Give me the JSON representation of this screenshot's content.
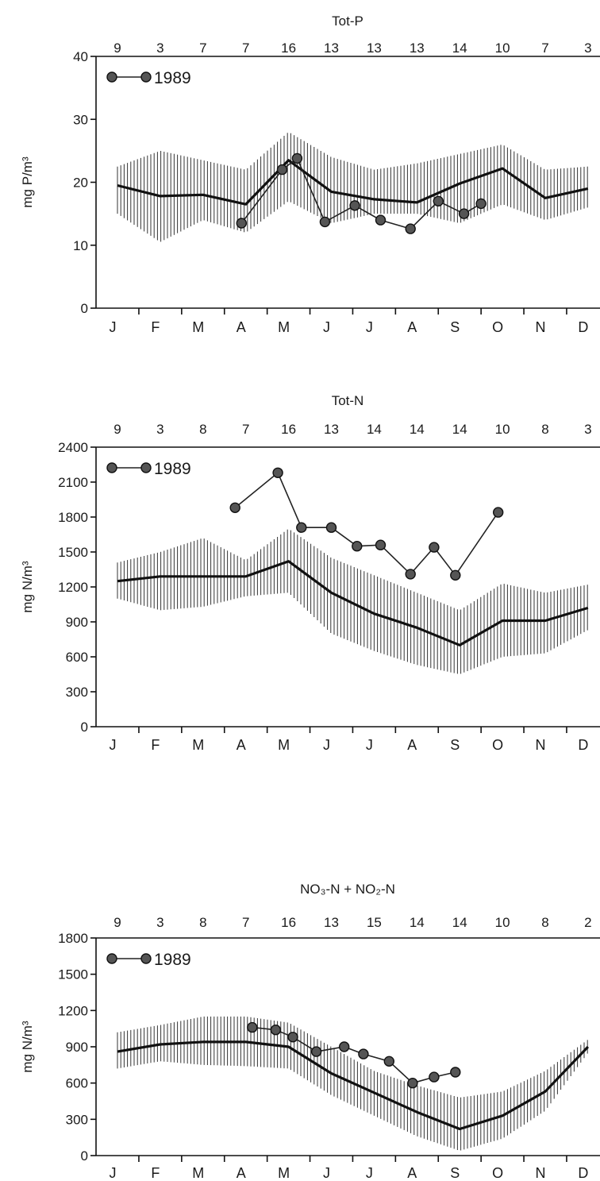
{
  "chart_data": [
    {
      "type": "line",
      "title": "Tot-P",
      "ylabel": "mg P/m³",
      "ylim": [
        0,
        40
      ],
      "yticks": [
        "0",
        "10",
        "20",
        "30",
        "40"
      ],
      "months": [
        "J",
        "F",
        "M",
        "A",
        "M",
        "J",
        "J",
        "A",
        "S",
        "O",
        "N",
        "D"
      ],
      "counts": [
        "9",
        "3",
        "7",
        "7",
        "16",
        "13",
        "13",
        "13",
        "14",
        "10",
        "7",
        "3"
      ],
      "legend": "1989",
      "mean": {
        "x": [
          0,
          1,
          2,
          3,
          4,
          5,
          6,
          7,
          8,
          9,
          10,
          11
        ],
        "y": [
          19.5,
          17.8,
          18,
          16.5,
          23.5,
          18.5,
          17.3,
          16.8,
          19.8,
          22.2,
          17.5,
          19
        ]
      },
      "band": {
        "x": [
          0,
          1,
          2,
          3,
          4,
          5,
          6,
          7,
          8,
          9,
          10,
          11
        ],
        "low": [
          15,
          10.5,
          14,
          12,
          17,
          13.5,
          15,
          15,
          13.5,
          16.5,
          14,
          16
        ],
        "high": [
          22.5,
          25,
          23.5,
          22,
          28,
          24,
          22,
          23,
          24.5,
          26,
          22,
          22.5
        ]
      },
      "series_1989": {
        "x": [
          2.9,
          3.85,
          4.2,
          4.85,
          5.55,
          6.15,
          6.85,
          7.5,
          8.1,
          8.5
        ],
        "y": [
          13.5,
          22,
          23.8,
          13.7,
          16.3,
          14,
          12.6,
          17,
          15,
          16.6
        ]
      }
    },
    {
      "type": "line",
      "title": "Tot-N",
      "ylabel": "mg N/m³",
      "ylim": [
        0,
        2400
      ],
      "yticks": [
        "0",
        "300",
        "600",
        "900",
        "1200",
        "1500",
        "1800",
        "2100",
        "2400"
      ],
      "months": [
        "J",
        "F",
        "M",
        "A",
        "M",
        "J",
        "J",
        "A",
        "S",
        "O",
        "N",
        "D"
      ],
      "counts": [
        "9",
        "3",
        "8",
        "7",
        "16",
        "13",
        "14",
        "14",
        "14",
        "10",
        "8",
        "3"
      ],
      "legend": "1989",
      "mean": {
        "x": [
          0,
          1,
          2,
          3,
          4,
          5,
          6,
          7,
          8,
          9,
          10,
          11
        ],
        "y": [
          1250,
          1290,
          1290,
          1290,
          1420,
          1150,
          970,
          850,
          700,
          910,
          910,
          1020
        ]
      },
      "band": {
        "x": [
          0,
          1,
          2,
          3,
          4,
          5,
          6,
          7,
          8,
          9,
          10,
          11
        ],
        "low": [
          1100,
          1000,
          1030,
          1120,
          1150,
          800,
          650,
          530,
          450,
          600,
          630,
          830
        ],
        "high": [
          1410,
          1500,
          1620,
          1430,
          1700,
          1450,
          1300,
          1150,
          1000,
          1230,
          1150,
          1220
        ]
      },
      "series_1989": {
        "x": [
          2.75,
          3.75,
          4.3,
          5,
          5.6,
          6.15,
          6.85,
          7.4,
          7.9,
          8.9
        ],
        "y": [
          1880,
          2180,
          1710,
          1710,
          1550,
          1560,
          1310,
          1540,
          1300,
          1840
        ]
      }
    },
    {
      "type": "line",
      "title": "NO₃-N + NO₂-N",
      "ylabel": "mg N/m³",
      "ylim": [
        0,
        1800
      ],
      "yticks": [
        "0",
        "300",
        "600",
        "900",
        "1200",
        "1500",
        "1800"
      ],
      "months": [
        "J",
        "F",
        "M",
        "A",
        "M",
        "J",
        "J",
        "A",
        "S",
        "O",
        "N",
        "D"
      ],
      "counts": [
        "9",
        "3",
        "8",
        "7",
        "16",
        "13",
        "15",
        "14",
        "14",
        "10",
        "8",
        "2"
      ],
      "legend": "1989",
      "mean": {
        "x": [
          0,
          1,
          2,
          3,
          4,
          5,
          6,
          7,
          8,
          9,
          10,
          11
        ],
        "y": [
          860,
          920,
          940,
          940,
          900,
          680,
          520,
          360,
          220,
          330,
          530,
          900
        ]
      },
      "band": {
        "x": [
          0,
          1,
          2,
          3,
          4,
          5,
          6,
          7,
          8,
          9,
          10,
          11
        ],
        "low": [
          720,
          780,
          750,
          740,
          720,
          500,
          330,
          160,
          40,
          140,
          370,
          850
        ],
        "high": [
          1020,
          1080,
          1150,
          1150,
          1100,
          900,
          700,
          580,
          480,
          530,
          700,
          960
        ]
      },
      "series_1989": {
        "x": [
          3.15,
          3.7,
          4.1,
          4.65,
          5.3,
          5.75,
          6.35,
          6.9,
          7.4,
          7.9
        ],
        "y": [
          1060,
          1040,
          980,
          860,
          900,
          840,
          780,
          600,
          650,
          690
        ]
      }
    }
  ]
}
